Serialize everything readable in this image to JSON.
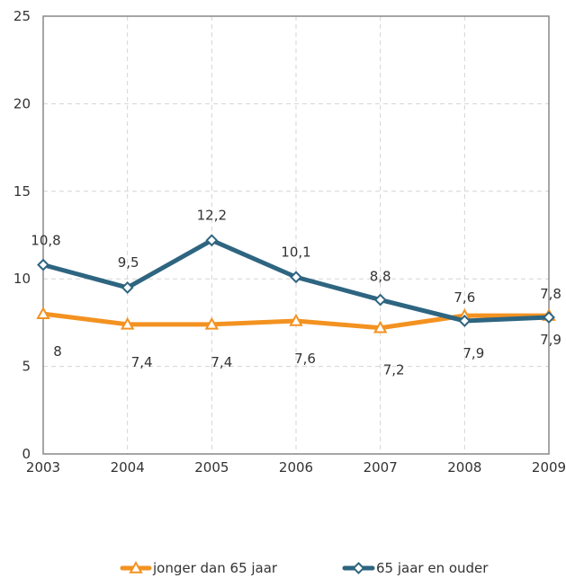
{
  "chart_data": {
    "type": "line",
    "title": "",
    "xlabel": "",
    "ylabel": "",
    "x": [
      "2003",
      "2004",
      "2005",
      "2006",
      "2007",
      "2008",
      "2009"
    ],
    "ylim": [
      0,
      25
    ],
    "yticks": [
      "0",
      "5",
      "10",
      "15",
      "20",
      "25"
    ],
    "grid": true,
    "legend_position": "bottom",
    "series": [
      {
        "name": "jonger dan 65 jaar",
        "color": "#f39221",
        "marker": "triangle",
        "values": [
          8.0,
          7.4,
          7.4,
          7.6,
          7.2,
          7.9,
          7.9
        ],
        "labels": [
          "8",
          "7,4",
          "7,4",
          "7,6",
          "7,2",
          "7,9",
          "7,9"
        ]
      },
      {
        "name": "65 jaar en ouder",
        "color": "#2e6580",
        "marker": "diamond",
        "values": [
          10.8,
          9.5,
          12.2,
          10.1,
          8.8,
          7.6,
          7.8
        ],
        "labels": [
          "10,8",
          "9,5",
          "12,2",
          "10,1",
          "8,8",
          "7,6",
          "7,8"
        ]
      }
    ]
  }
}
